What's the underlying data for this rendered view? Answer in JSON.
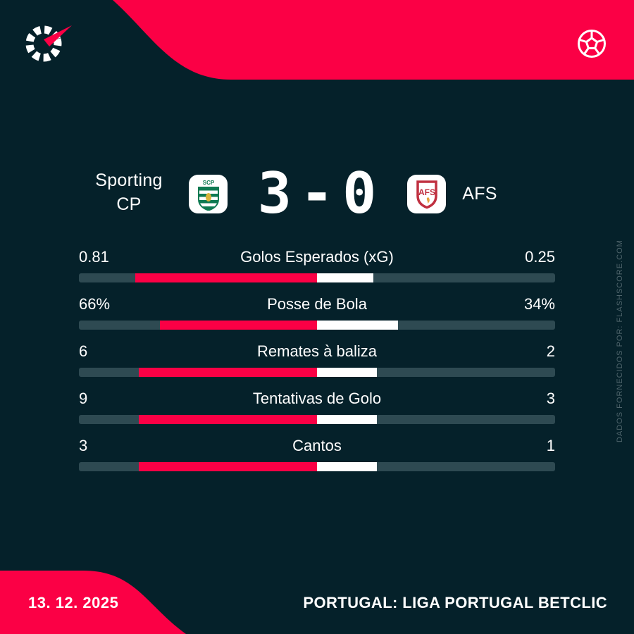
{
  "header": {
    "logo_icon": "flashscore-spinner-logo",
    "ball_icon": "football-outline"
  },
  "scoreboard": {
    "home_team": {
      "name_line1": "Sporting",
      "name_line2": "CP",
      "crest_label": "SCP"
    },
    "away_team": {
      "name": "AFS",
      "crest_label": "AFS"
    },
    "score": {
      "home": "3",
      "separator": "-",
      "away": "0"
    }
  },
  "stats": {
    "rows": [
      {
        "label": "Golos Esperados (xG)",
        "home": "0.81",
        "away": "0.25"
      },
      {
        "label": "Posse de Bola",
        "home": "66%",
        "away": "34%"
      },
      {
        "label": "Remates à baliza",
        "home": "6",
        "away": "2"
      },
      {
        "label": "Tentativas de Golo",
        "home": "9",
        "away": "3"
      },
      {
        "label": "Cantos",
        "home": "3",
        "away": "1"
      }
    ]
  },
  "chart_data": {
    "type": "bar",
    "orientation": "horizontal-paired",
    "title": "Sporting CP 3 - 0 AFS",
    "categories": [
      "Golos Esperados (xG)",
      "Posse de Bola",
      "Remates à baliza",
      "Tentativas de Golo",
      "Cantos"
    ],
    "series": [
      {
        "name": "Sporting CP",
        "values": [
          0.81,
          66,
          6,
          9,
          3
        ],
        "color": "#fb0045"
      },
      {
        "name": "AFS",
        "values": [
          0.25,
          34,
          2,
          3,
          1
        ],
        "color": "#ffffff"
      }
    ],
    "legend_position": "none",
    "grid": false
  },
  "footer": {
    "date": "13. 12. 2025",
    "competition": "PORTUGAL: LIGA PORTUGAL BETCLIC"
  },
  "watermark": "DADOS FORNECIDOS POR: FLASHSCORE.COM",
  "colors": {
    "background": "#05212a",
    "accent": "#fb0045",
    "bar_track": "#2e4a52",
    "bar_away": "#ffffff",
    "muted_text": "#4e646b",
    "sporting_green": "#0e7a52",
    "afs_red": "#c03040",
    "afs_gold": "#e8a33d"
  }
}
